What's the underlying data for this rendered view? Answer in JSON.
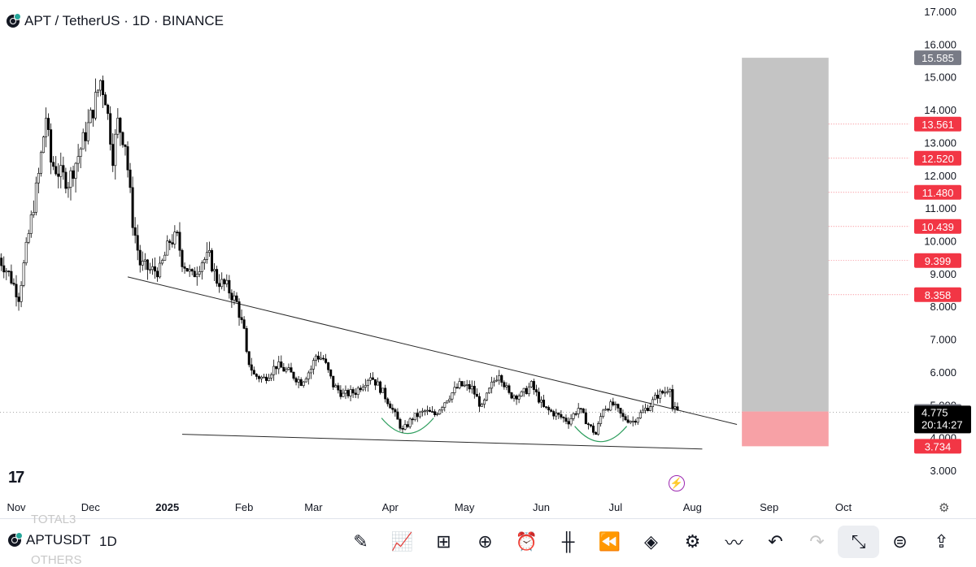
{
  "header": {
    "symbol_title": "APT / TetherUS · 1D · BINANCE"
  },
  "colors": {
    "up": "#ffffff",
    "down": "#000000",
    "target_zone": "#c4c4c4",
    "stop_zone": "#f7a1a6",
    "label_red": "#f23645",
    "label_gray": "#787b86",
    "arc": "#2e9e5e"
  },
  "chart_data": {
    "type": "candlestick",
    "title": "APT / TetherUS · 1D · BINANCE",
    "y_axis_ticks": [
      "17.000",
      "16.000",
      "15.000",
      "14.000",
      "13.000",
      "12.000",
      "11.000",
      "10.000",
      "9.000",
      "8.000",
      "7.000",
      "6.000",
      "5.000",
      "4.000",
      "3.000"
    ],
    "y_range": [
      3.0,
      17.0
    ],
    "x_axis_labels": [
      "Nov",
      "Dec",
      "2025",
      "Feb",
      "Mar",
      "Apr",
      "May",
      "Jun",
      "Jul",
      "Aug",
      "Sep",
      "Oct"
    ],
    "close_series": [
      {
        "date": "2024-10-25",
        "close": 9.6
      },
      {
        "date": "2024-10-30",
        "close": 9.0
      },
      {
        "date": "2024-11-03",
        "close": 8.3
      },
      {
        "date": "2024-11-07",
        "close": 10.2
      },
      {
        "date": "2024-11-11",
        "close": 12.0
      },
      {
        "date": "2024-11-14",
        "close": 13.8
      },
      {
        "date": "2024-11-16",
        "close": 12.4
      },
      {
        "date": "2024-11-19",
        "close": 12.1
      },
      {
        "date": "2024-11-23",
        "close": 11.8
      },
      {
        "date": "2024-11-27",
        "close": 12.6
      },
      {
        "date": "2024-12-01",
        "close": 13.5
      },
      {
        "date": "2024-12-04",
        "close": 14.3
      },
      {
        "date": "2024-12-06",
        "close": 14.9
      },
      {
        "date": "2024-12-08",
        "close": 14.4
      },
      {
        "date": "2024-12-11",
        "close": 12.6
      },
      {
        "date": "2024-12-13",
        "close": 13.6
      },
      {
        "date": "2024-12-16",
        "close": 13.0
      },
      {
        "date": "2024-12-19",
        "close": 10.6
      },
      {
        "date": "2024-12-22",
        "close": 9.3
      },
      {
        "date": "2024-12-26",
        "close": 9.1
      },
      {
        "date": "2024-12-30",
        "close": 9.1
      },
      {
        "date": "2025-01-03",
        "close": 10.0
      },
      {
        "date": "2025-01-06",
        "close": 10.1
      },
      {
        "date": "2025-01-08",
        "close": 9.4
      },
      {
        "date": "2025-01-12",
        "close": 8.9
      },
      {
        "date": "2025-01-16",
        "close": 9.4
      },
      {
        "date": "2025-01-19",
        "close": 9.5
      },
      {
        "date": "2025-01-22",
        "close": 8.8
      },
      {
        "date": "2025-01-26",
        "close": 8.6
      },
      {
        "date": "2025-01-30",
        "close": 8.1
      },
      {
        "date": "2025-02-02",
        "close": 7.2
      },
      {
        "date": "2025-02-03",
        "close": 6.5
      },
      {
        "date": "2025-02-06",
        "close": 5.9
      },
      {
        "date": "2025-02-10",
        "close": 5.8
      },
      {
        "date": "2025-02-15",
        "close": 6.2
      },
      {
        "date": "2025-02-20",
        "close": 6.0
      },
      {
        "date": "2025-02-25",
        "close": 5.7
      },
      {
        "date": "2025-03-01",
        "close": 6.1
      },
      {
        "date": "2025-03-03",
        "close": 6.5
      },
      {
        "date": "2025-03-06",
        "close": 6.4
      },
      {
        "date": "2025-03-10",
        "close": 5.6
      },
      {
        "date": "2025-03-14",
        "close": 5.3
      },
      {
        "date": "2025-03-19",
        "close": 5.4
      },
      {
        "date": "2025-03-25",
        "close": 5.9
      },
      {
        "date": "2025-03-29",
        "close": 5.5
      },
      {
        "date": "2025-04-02",
        "close": 5.0
      },
      {
        "date": "2025-04-07",
        "close": 4.2
      },
      {
        "date": "2025-04-11",
        "close": 4.6
      },
      {
        "date": "2025-04-16",
        "close": 4.8
      },
      {
        "date": "2025-04-20",
        "close": 4.7
      },
      {
        "date": "2025-04-25",
        "close": 5.2
      },
      {
        "date": "2025-04-30",
        "close": 5.6
      },
      {
        "date": "2025-05-05",
        "close": 5.5
      },
      {
        "date": "2025-05-09",
        "close": 4.9
      },
      {
        "date": "2025-05-13",
        "close": 5.6
      },
      {
        "date": "2025-05-16",
        "close": 6.0
      },
      {
        "date": "2025-05-20",
        "close": 5.3
      },
      {
        "date": "2025-05-25",
        "close": 5.3
      },
      {
        "date": "2025-05-29",
        "close": 5.6
      },
      {
        "date": "2025-06-03",
        "close": 4.9
      },
      {
        "date": "2025-06-08",
        "close": 4.7
      },
      {
        "date": "2025-06-13",
        "close": 4.5
      },
      {
        "date": "2025-06-17",
        "close": 4.9
      },
      {
        "date": "2025-06-21",
        "close": 4.4
      },
      {
        "date": "2025-06-24",
        "close": 4.1
      },
      {
        "date": "2025-06-27",
        "close": 4.9
      },
      {
        "date": "2025-07-01",
        "close": 5.0
      },
      {
        "date": "2025-07-05",
        "close": 4.6
      },
      {
        "date": "2025-07-09",
        "close": 4.5
      },
      {
        "date": "2025-07-13",
        "close": 4.8
      },
      {
        "date": "2025-07-16",
        "close": 5.0
      },
      {
        "date": "2025-07-19",
        "close": 5.3
      },
      {
        "date": "2025-07-22",
        "close": 5.4
      },
      {
        "date": "2025-07-24",
        "close": 5.6
      },
      {
        "date": "2025-07-25",
        "close": 4.9
      },
      {
        "date": "2025-07-27",
        "close": 4.775
      }
    ],
    "price_levels": [
      {
        "value": 15.585,
        "label": "15.585",
        "style": "gray"
      },
      {
        "value": 13.561,
        "label": "13.561",
        "style": "red"
      },
      {
        "value": 12.52,
        "label": "12.520",
        "style": "red"
      },
      {
        "value": 11.48,
        "label": "11.480",
        "style": "red"
      },
      {
        "value": 10.439,
        "label": "10.439",
        "style": "red"
      },
      {
        "value": 9.399,
        "label": "9.399",
        "style": "red"
      },
      {
        "value": 8.358,
        "label": "8.358",
        "style": "red"
      },
      {
        "value": 4.795,
        "label": "4.795",
        "style": "gray"
      },
      {
        "value": 3.734,
        "label": "3.734",
        "style": "red"
      }
    ],
    "last_price": {
      "value": 4.775,
      "label": "4.775",
      "countdown": "20:14:27"
    },
    "trendlines": [
      {
        "from": {
          "date": "2024-12-16",
          "price": 8.9
        },
        "to": {
          "date": "2025-08-19",
          "price": 4.4
        }
      },
      {
        "from": {
          "date": "2025-01-07",
          "price": 4.1
        },
        "to": {
          "date": "2025-08-05",
          "price": 3.65
        }
      }
    ],
    "position_zone": {
      "entry": 4.795,
      "target": 15.585,
      "stop": 3.734,
      "from_date": "2025-08-21",
      "to_date": "2025-09-25"
    },
    "bottom_arcs": [
      {
        "center_date": "2025-04-08",
        "price": 4.1
      },
      {
        "center_date": "2025-06-25",
        "price": 3.85
      }
    ],
    "grid": false,
    "legend": "none"
  },
  "bottom_bar": {
    "symbol": "APTUSDT",
    "timeframe": "1D",
    "ghost_top": "TOTAL3",
    "ghost_bottom": "OTHERS",
    "tools": [
      "pencil-icon",
      "indicators-icon",
      "layouts-icon",
      "add-icon",
      "alert-icon",
      "candles-icon",
      "replay-icon",
      "layers-icon",
      "settings-sliders-icon",
      "strategy-icon",
      "undo-icon",
      "redo-icon",
      "fullscreen-exit-icon",
      "add-idea-icon",
      "share-icon"
    ]
  }
}
